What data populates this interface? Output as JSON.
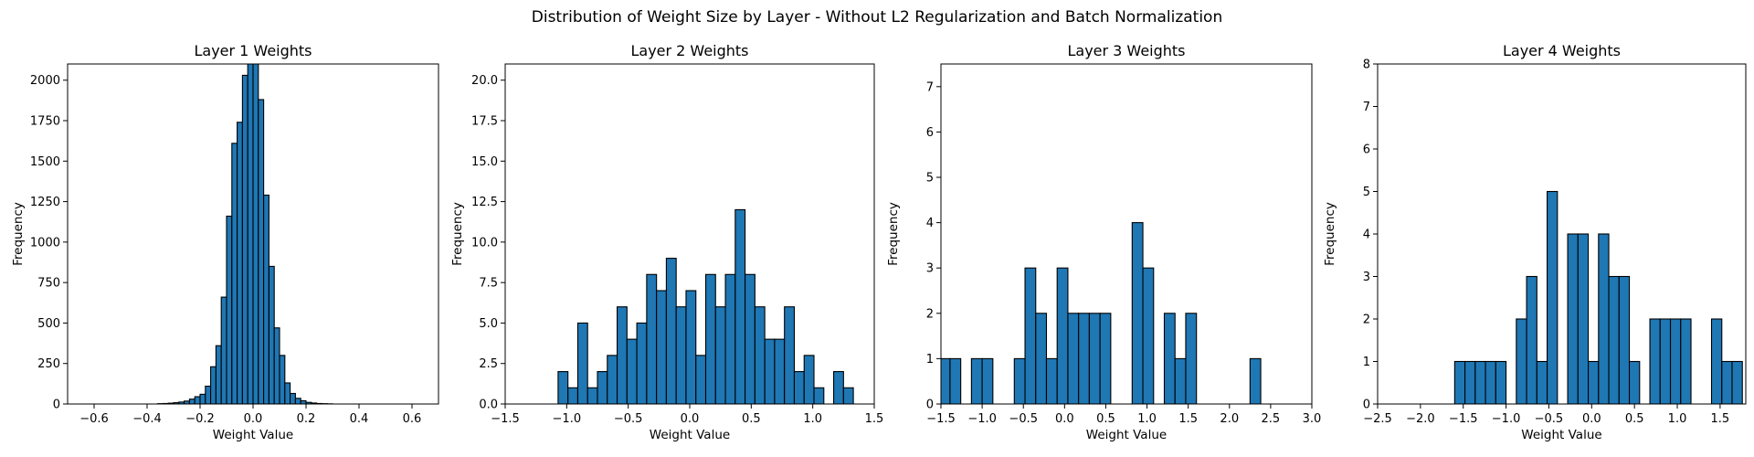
{
  "figure_title": "Distribution of Weight Size by Layer - Without L2 Regularization and Batch Normalization",
  "colors": {
    "bar_fill": "#1f77b4",
    "bar_edge": "#000000"
  },
  "chart_data": [
    {
      "type": "bar",
      "title": "Layer 1 Weights",
      "xlabel": "Weight Value",
      "ylabel": "Frequency",
      "xlim": [
        -0.7,
        0.7
      ],
      "ylim": [
        0,
        2100
      ],
      "xticks": [
        -0.6,
        -0.4,
        -0.2,
        0.0,
        0.2,
        0.4,
        0.6
      ],
      "xtick_labels": [
        "−0.6",
        "−0.4",
        "−0.2",
        "0.0",
        "0.2",
        "0.4",
        "0.6"
      ],
      "yticks": [
        0,
        250,
        500,
        750,
        1000,
        1250,
        1500,
        1750,
        2000
      ],
      "ytick_labels": [
        "0",
        "250",
        "500",
        "750",
        "1000",
        "1250",
        "1500",
        "1750",
        "2000"
      ],
      "grid": false,
      "bins": [
        {
          "x0": -0.36,
          "x1": -0.34,
          "y": 2
        },
        {
          "x0": -0.34,
          "x1": -0.32,
          "y": 3
        },
        {
          "x0": -0.32,
          "x1": -0.3,
          "y": 5
        },
        {
          "x0": -0.3,
          "x1": -0.28,
          "y": 8
        },
        {
          "x0": -0.28,
          "x1": -0.26,
          "y": 12
        },
        {
          "x0": -0.26,
          "x1": -0.24,
          "y": 18
        },
        {
          "x0": -0.24,
          "x1": -0.22,
          "y": 30
        },
        {
          "x0": -0.22,
          "x1": -0.2,
          "y": 45
        },
        {
          "x0": -0.2,
          "x1": -0.18,
          "y": 60
        },
        {
          "x0": -0.18,
          "x1": -0.16,
          "y": 110
        },
        {
          "x0": -0.16,
          "x1": -0.14,
          "y": 230
        },
        {
          "x0": -0.14,
          "x1": -0.12,
          "y": 360
        },
        {
          "x0": -0.12,
          "x1": -0.1,
          "y": 660
        },
        {
          "x0": -0.1,
          "x1": -0.08,
          "y": 1160
        },
        {
          "x0": -0.08,
          "x1": -0.06,
          "y": 1610
        },
        {
          "x0": -0.06,
          "x1": -0.04,
          "y": 1740
        },
        {
          "x0": -0.04,
          "x1": -0.02,
          "y": 2030
        },
        {
          "x0": -0.02,
          "x1": 0.0,
          "y": 2200
        },
        {
          "x0": 0.0,
          "x1": 0.02,
          "y": 2200
        },
        {
          "x0": 0.02,
          "x1": 0.04,
          "y": 1880
        },
        {
          "x0": 0.04,
          "x1": 0.06,
          "y": 1290
        },
        {
          "x0": 0.06,
          "x1": 0.08,
          "y": 850
        },
        {
          "x0": 0.08,
          "x1": 0.1,
          "y": 470
        },
        {
          "x0": 0.1,
          "x1": 0.12,
          "y": 300
        },
        {
          "x0": 0.12,
          "x1": 0.14,
          "y": 130
        },
        {
          "x0": 0.14,
          "x1": 0.16,
          "y": 65
        },
        {
          "x0": 0.16,
          "x1": 0.18,
          "y": 35
        },
        {
          "x0": 0.18,
          "x1": 0.2,
          "y": 20
        },
        {
          "x0": 0.2,
          "x1": 0.22,
          "y": 10
        },
        {
          "x0": 0.22,
          "x1": 0.24,
          "y": 6
        },
        {
          "x0": 0.24,
          "x1": 0.26,
          "y": 3
        },
        {
          "x0": 0.26,
          "x1": 0.28,
          "y": 2
        },
        {
          "x0": 0.28,
          "x1": 0.3,
          "y": 1
        }
      ]
    },
    {
      "type": "bar",
      "title": "Layer 2 Weights",
      "xlabel": "Weight Value",
      "ylabel": "Frequency",
      "xlim": [
        -1.5,
        1.5
      ],
      "ylim": [
        0,
        21
      ],
      "xticks": [
        -1.5,
        -1.0,
        -0.5,
        0.0,
        0.5,
        1.0,
        1.5
      ],
      "xtick_labels": [
        "−1.5",
        "−1.0",
        "−0.5",
        "0.0",
        "0.5",
        "1.0",
        "1.5"
      ],
      "yticks": [
        0,
        2.5,
        5,
        7.5,
        10,
        12.5,
        15,
        17.5,
        20
      ],
      "ytick_labels": [
        "0.0",
        "2.5",
        "5.0",
        "7.5",
        "10.0",
        "12.5",
        "15.0",
        "17.5",
        "20.0"
      ],
      "grid": false,
      "bins": [
        {
          "x0": -1.07,
          "x1": -0.99,
          "y": 2
        },
        {
          "x0": -0.99,
          "x1": -0.91,
          "y": 1
        },
        {
          "x0": -0.91,
          "x1": -0.83,
          "y": 5
        },
        {
          "x0": -0.83,
          "x1": -0.75,
          "y": 1
        },
        {
          "x0": -0.75,
          "x1": -0.67,
          "y": 2
        },
        {
          "x0": -0.67,
          "x1": -0.59,
          "y": 3
        },
        {
          "x0": -0.59,
          "x1": -0.51,
          "y": 6
        },
        {
          "x0": -0.51,
          "x1": -0.43,
          "y": 4
        },
        {
          "x0": -0.43,
          "x1": -0.35,
          "y": 5
        },
        {
          "x0": -0.35,
          "x1": -0.27,
          "y": 8
        },
        {
          "x0": -0.27,
          "x1": -0.19,
          "y": 7
        },
        {
          "x0": -0.19,
          "x1": -0.11,
          "y": 9
        },
        {
          "x0": -0.11,
          "x1": -0.03,
          "y": 6
        },
        {
          "x0": -0.03,
          "x1": 0.05,
          "y": 7
        },
        {
          "x0": 0.05,
          "x1": 0.13,
          "y": 3
        },
        {
          "x0": 0.13,
          "x1": 0.21,
          "y": 8
        },
        {
          "x0": 0.21,
          "x1": 0.29,
          "y": 6
        },
        {
          "x0": 0.29,
          "x1": 0.37,
          "y": 8
        },
        {
          "x0": 0.37,
          "x1": 0.45,
          "y": 12
        },
        {
          "x0": 0.45,
          "x1": 0.53,
          "y": 8
        },
        {
          "x0": 0.53,
          "x1": 0.61,
          "y": 6
        },
        {
          "x0": 0.61,
          "x1": 0.69,
          "y": 4
        },
        {
          "x0": 0.69,
          "x1": 0.77,
          "y": 4
        },
        {
          "x0": 0.77,
          "x1": 0.85,
          "y": 6
        },
        {
          "x0": 0.85,
          "x1": 0.93,
          "y": 2
        },
        {
          "x0": 0.93,
          "x1": 1.01,
          "y": 3
        },
        {
          "x0": 1.01,
          "x1": 1.09,
          "y": 1
        },
        {
          "x0": 1.09,
          "x1": 1.17,
          "y": 0
        },
        {
          "x0": 1.17,
          "x1": 1.25,
          "y": 2
        },
        {
          "x0": 1.25,
          "x1": 1.33,
          "y": 1
        }
      ]
    },
    {
      "type": "bar",
      "title": "Layer 3 Weights",
      "xlabel": "Weight Value",
      "ylabel": "Frequency",
      "xlim": [
        -1.5,
        3.0
      ],
      "ylim": [
        0,
        7.5
      ],
      "xticks": [
        -1.5,
        -1.0,
        -0.5,
        0.0,
        0.5,
        1.0,
        1.5,
        2.0,
        2.5,
        3.0
      ],
      "xtick_labels": [
        "−1.5",
        "−1.0",
        "−0.5",
        "0.0",
        "0.5",
        "1.0",
        "1.5",
        "2.0",
        "2.5",
        "3.0"
      ],
      "yticks": [
        0,
        1,
        2,
        3,
        4,
        5,
        6,
        7
      ],
      "ytick_labels": [
        "0",
        "1",
        "2",
        "3",
        "4",
        "5",
        "6",
        "7"
      ],
      "grid": false,
      "bins": [
        {
          "x0": -1.52,
          "x1": -1.39,
          "y": 1
        },
        {
          "x0": -1.39,
          "x1": -1.26,
          "y": 1
        },
        {
          "x0": -1.26,
          "x1": -1.13,
          "y": 0
        },
        {
          "x0": -1.13,
          "x1": -1.0,
          "y": 1
        },
        {
          "x0": -1.0,
          "x1": -0.87,
          "y": 1
        },
        {
          "x0": -0.87,
          "x1": -0.74,
          "y": 0
        },
        {
          "x0": -0.74,
          "x1": -0.61,
          "y": 0
        },
        {
          "x0": -0.61,
          "x1": -0.48,
          "y": 1
        },
        {
          "x0": -0.48,
          "x1": -0.35,
          "y": 3
        },
        {
          "x0": -0.35,
          "x1": -0.22,
          "y": 2
        },
        {
          "x0": -0.22,
          "x1": -0.09,
          "y": 1
        },
        {
          "x0": -0.09,
          "x1": 0.04,
          "y": 3
        },
        {
          "x0": 0.04,
          "x1": 0.17,
          "y": 2
        },
        {
          "x0": 0.17,
          "x1": 0.3,
          "y": 2
        },
        {
          "x0": 0.3,
          "x1": 0.43,
          "y": 2
        },
        {
          "x0": 0.43,
          "x1": 0.56,
          "y": 2
        },
        {
          "x0": 0.56,
          "x1": 0.69,
          "y": 0
        },
        {
          "x0": 0.69,
          "x1": 0.82,
          "y": 0
        },
        {
          "x0": 0.82,
          "x1": 0.95,
          "y": 4
        },
        {
          "x0": 0.95,
          "x1": 1.08,
          "y": 3
        },
        {
          "x0": 1.08,
          "x1": 1.21,
          "y": 0
        },
        {
          "x0": 1.21,
          "x1": 1.34,
          "y": 2
        },
        {
          "x0": 1.34,
          "x1": 1.47,
          "y": 1
        },
        {
          "x0": 1.47,
          "x1": 1.6,
          "y": 2
        },
        {
          "x0": 2.25,
          "x1": 2.38,
          "y": 1
        }
      ]
    },
    {
      "type": "bar",
      "title": "Layer 4 Weights",
      "xlabel": "Weight Value",
      "ylabel": "Frequency",
      "xlim": [
        -2.5,
        1.8
      ],
      "ylim": [
        0,
        8
      ],
      "xticks": [
        -2.5,
        -2.0,
        -1.5,
        -1.0,
        -0.5,
        0.0,
        0.5,
        1.0,
        1.5
      ],
      "xtick_labels": [
        "−2.5",
        "−2.0",
        "−1.5",
        "−1.0",
        "−0.5",
        "0.0",
        "0.5",
        "1.0",
        "1.5"
      ],
      "yticks": [
        0,
        1,
        2,
        3,
        4,
        5,
        6,
        7,
        8
      ],
      "ytick_labels": [
        "0",
        "1",
        "2",
        "3",
        "4",
        "5",
        "6",
        "7",
        "8"
      ],
      "grid": false,
      "bins": [
        {
          "x0": -1.6,
          "x1": -1.48,
          "y": 1
        },
        {
          "x0": -1.48,
          "x1": -1.36,
          "y": 1
        },
        {
          "x0": -1.36,
          "x1": -1.24,
          "y": 1
        },
        {
          "x0": -1.24,
          "x1": -1.12,
          "y": 1
        },
        {
          "x0": -1.12,
          "x1": -1.0,
          "y": 1
        },
        {
          "x0": -1.0,
          "x1": -0.88,
          "y": 0
        },
        {
          "x0": -0.88,
          "x1": -0.76,
          "y": 2
        },
        {
          "x0": -0.76,
          "x1": -0.64,
          "y": 3
        },
        {
          "x0": -0.64,
          "x1": -0.52,
          "y": 1
        },
        {
          "x0": -0.52,
          "x1": -0.4,
          "y": 5
        },
        {
          "x0": -0.4,
          "x1": -0.28,
          "y": 0
        },
        {
          "x0": -0.28,
          "x1": -0.16,
          "y": 4
        },
        {
          "x0": -0.16,
          "x1": -0.04,
          "y": 4
        },
        {
          "x0": -0.04,
          "x1": 0.08,
          "y": 1
        },
        {
          "x0": 0.08,
          "x1": 0.2,
          "y": 4
        },
        {
          "x0": 0.2,
          "x1": 0.32,
          "y": 3
        },
        {
          "x0": 0.32,
          "x1": 0.44,
          "y": 3
        },
        {
          "x0": 0.44,
          "x1": 0.56,
          "y": 1
        },
        {
          "x0": 0.56,
          "x1": 0.68,
          "y": 0
        },
        {
          "x0": 0.68,
          "x1": 0.8,
          "y": 2
        },
        {
          "x0": 0.8,
          "x1": 0.92,
          "y": 2
        },
        {
          "x0": 0.92,
          "x1": 1.04,
          "y": 2
        },
        {
          "x0": 1.04,
          "x1": 1.16,
          "y": 2
        },
        {
          "x0": 1.16,
          "x1": 1.28,
          "y": 0
        },
        {
          "x0": 1.28,
          "x1": 1.4,
          "y": 0
        },
        {
          "x0": 1.4,
          "x1": 1.52,
          "y": 2
        },
        {
          "x0": 1.52,
          "x1": 1.64,
          "y": 1
        },
        {
          "x0": 1.64,
          "x1": 1.76,
          "y": 1
        }
      ]
    }
  ]
}
